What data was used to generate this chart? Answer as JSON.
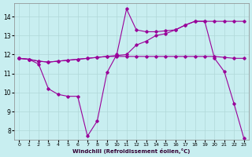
{
  "xlabel": "Windchill (Refroidissement éolien,°C)",
  "background_color": "#c8eef0",
  "line_color": "#990099",
  "grid_color": "#b0d8d8",
  "xlim": [
    -0.5,
    23.5
  ],
  "ylim": [
    7.5,
    14.7
  ],
  "xticks": [
    0,
    1,
    2,
    3,
    4,
    5,
    6,
    7,
    8,
    9,
    10,
    11,
    12,
    13,
    14,
    15,
    16,
    17,
    18,
    19,
    20,
    21,
    22,
    23
  ],
  "yticks": [
    8,
    9,
    10,
    11,
    12,
    13,
    14
  ],
  "line1_x": [
    0,
    1,
    2,
    3,
    4,
    5,
    6,
    7,
    8,
    9,
    10,
    11,
    12,
    13,
    14,
    15,
    16,
    17,
    18,
    19,
    20,
    21,
    22,
    23
  ],
  "line1_y": [
    11.8,
    11.75,
    11.65,
    11.6,
    11.65,
    11.7,
    11.75,
    11.8,
    11.85,
    11.9,
    11.9,
    11.9,
    11.9,
    11.9,
    11.9,
    11.9,
    11.9,
    11.9,
    11.9,
    11.9,
    11.9,
    11.85,
    11.8,
    11.8
  ],
  "line2_x": [
    0,
    1,
    2,
    3,
    4,
    5,
    6,
    7,
    8,
    9,
    10,
    11,
    12,
    13,
    14,
    15,
    16,
    17,
    18,
    19,
    20,
    21,
    22,
    23
  ],
  "line2_y": [
    11.8,
    11.75,
    11.5,
    10.2,
    9.9,
    9.8,
    9.8,
    7.7,
    8.5,
    11.05,
    12.0,
    14.4,
    13.3,
    13.2,
    13.2,
    13.25,
    13.3,
    13.55,
    13.75,
    13.75,
    11.8,
    11.1,
    9.4,
    7.6
  ],
  "line3_x": [
    0,
    1,
    2,
    3,
    4,
    5,
    6,
    7,
    8,
    9,
    10,
    11,
    12,
    13,
    14,
    15,
    16,
    17,
    18,
    19,
    20,
    21,
    22,
    23
  ],
  "line3_y": [
    11.8,
    11.75,
    11.65,
    11.6,
    11.65,
    11.7,
    11.75,
    11.8,
    11.85,
    11.9,
    11.95,
    12.0,
    12.5,
    12.7,
    13.0,
    13.1,
    13.3,
    13.55,
    13.75,
    13.75,
    13.75,
    13.75,
    13.75,
    13.75
  ]
}
